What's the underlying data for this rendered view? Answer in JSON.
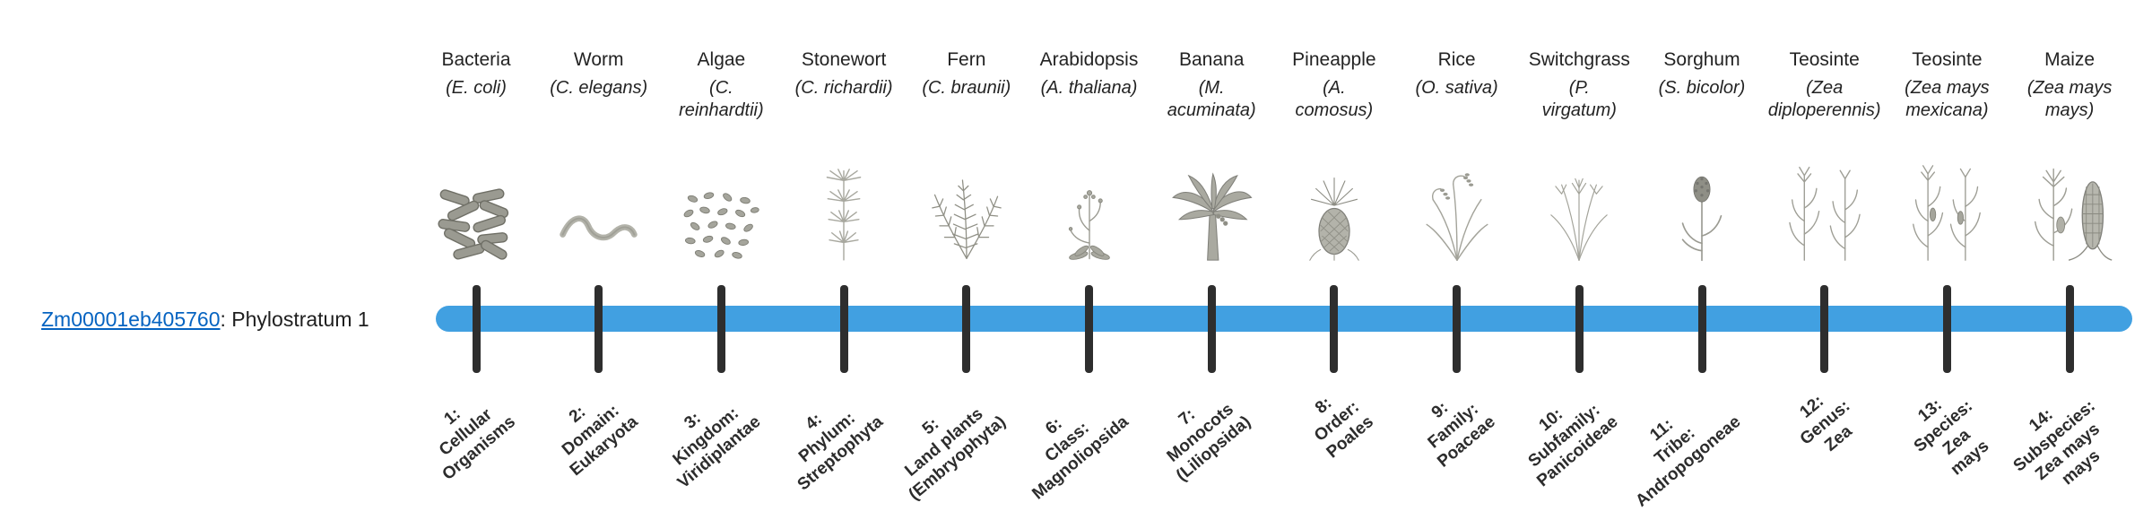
{
  "gene": {
    "id": "Zm00001eb405760",
    "suffix": ": Phylostratum 1",
    "link_color": "#0563c1"
  },
  "timeline": {
    "bar_color": "#41a0e1",
    "tick_color": "#2e2e2e"
  },
  "strata": [
    {
      "organism": "Bacteria",
      "scientific": "(E. coli)",
      "icon": "bacteria",
      "label": "1:\nCellular\nOrganisms"
    },
    {
      "organism": "Worm",
      "scientific": "(C. elegans)",
      "icon": "worm",
      "label": "2:\nDomain:\nEukaryota"
    },
    {
      "organism": "Algae",
      "scientific": "(C.\nreinhardtii)",
      "icon": "algae",
      "label": "3:\nKingdom:\nViridiplantae"
    },
    {
      "organism": "Stonewort",
      "scientific": "(C. richardii)",
      "icon": "stonewort",
      "label": "4:\nPhylum:\nStreptophyta"
    },
    {
      "organism": "Fern",
      "scientific": "(C. braunii)",
      "icon": "fern",
      "label": "5:\nLand plants\n(Embryophyta)"
    },
    {
      "organism": "Arabidopsis",
      "scientific": "(A. thaliana)",
      "icon": "arabidopsis",
      "label": "6:\nClass:\nMagnoliopsida"
    },
    {
      "organism": "Banana",
      "scientific": "(M.\nacuminata)",
      "icon": "banana",
      "label": "7:\nMonocots\n(Liliopsida)"
    },
    {
      "organism": "Pineapple",
      "scientific": "(A.\ncomosus)",
      "icon": "pineapple",
      "label": "8:\nOrder:\nPoales"
    },
    {
      "organism": "Rice",
      "scientific": "(O. sativa)",
      "icon": "rice",
      "label": "9:\nFamily:\nPoaceae"
    },
    {
      "organism": "Switchgrass",
      "scientific": "(P.\nvirgatum)",
      "icon": "switchgrass",
      "label": "10:\nSubfamily:\nPanicoideae"
    },
    {
      "organism": "Sorghum",
      "scientific": "(S. bicolor)",
      "icon": "sorghum",
      "label": "11:\nTribe:\nAndropogoneae"
    },
    {
      "organism": "Teosinte",
      "scientific": "(Zea\ndiploperennis)",
      "icon": "teosinte-diploperennis",
      "label": "12:\nGenus:\nZea"
    },
    {
      "organism": "Teosinte",
      "scientific": "(Zea mays\nmexicana)",
      "icon": "teosinte-mexicana",
      "label": "13:\nSpecies:\nZea\nmays"
    },
    {
      "organism": "Maize",
      "scientific": "(Zea mays\nmays)",
      "icon": "maize",
      "label": "14:\nSubspecies:\nZea mays\nmays"
    }
  ]
}
